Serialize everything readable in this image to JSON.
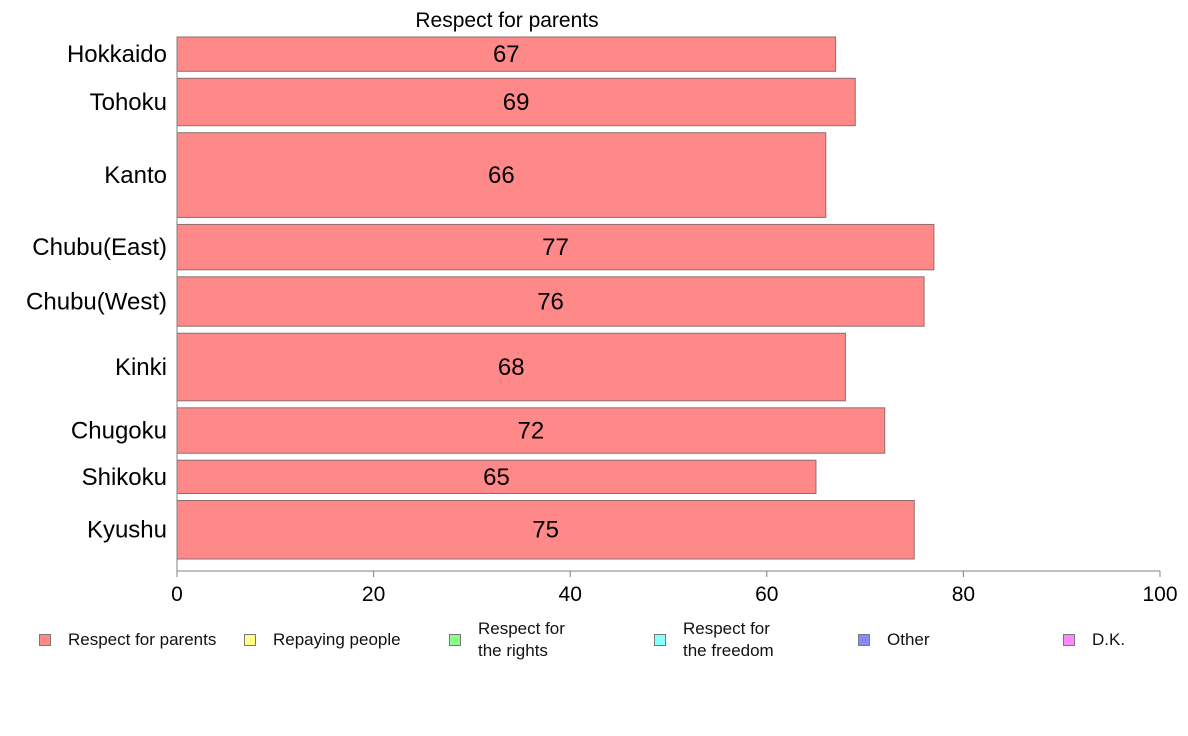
{
  "chart_data": {
    "type": "bar",
    "orientation": "horizontal",
    "title": "Respect for parents",
    "categories": [
      "Hokkaido",
      "Tohoku",
      "Kanto",
      "Chubu(East)",
      "Chubu(West)",
      "Kinki",
      "Chugoku",
      "Shikoku",
      "Kyushu"
    ],
    "series": [
      {
        "name": "Respect for parents",
        "color": "#ff8888",
        "values": [
          67,
          69,
          66,
          77,
          76,
          68,
          72,
          65,
          75
        ]
      }
    ],
    "relative_bar_heights": [
      34,
      47,
      84,
      45,
      49,
      67,
      45,
      33,
      58
    ],
    "xlim": [
      0,
      100
    ],
    "xticks": [
      0,
      20,
      40,
      60,
      80,
      100
    ],
    "grid": false,
    "legend_position": "bottom",
    "legend": [
      {
        "label": "Respect for parents",
        "color": "#ff8888"
      },
      {
        "label": "Repaying people",
        "color": "#ffff88"
      },
      {
        "label": "Respect for\nthe rights",
        "color": "#88ff88"
      },
      {
        "label": "Respect for\nthe freedom",
        "color": "#88ffff"
      },
      {
        "label": "Other",
        "color": "#8888ff"
      },
      {
        "label": "D.K.",
        "color": "#ff88ff"
      }
    ]
  }
}
